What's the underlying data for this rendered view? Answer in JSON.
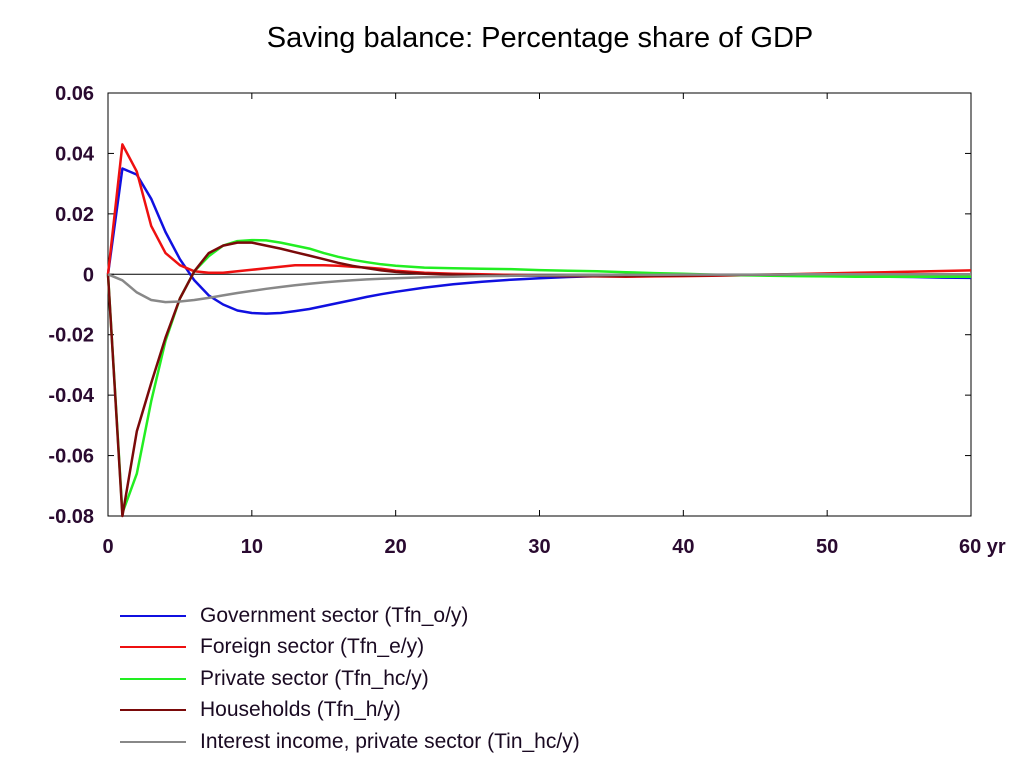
{
  "chart_data": {
    "type": "line",
    "title": "Saving balance: Percentage share of GDP",
    "xlabel": "",
    "ylabel": "",
    "xlim": [
      0,
      60
    ],
    "ylim": [
      -0.08,
      0.06
    ],
    "x_ticks": [
      {
        "value": 0,
        "label": "0"
      },
      {
        "value": 10,
        "label": "10"
      },
      {
        "value": 20,
        "label": "20"
      },
      {
        "value": 30,
        "label": "30"
      },
      {
        "value": 40,
        "label": "40"
      },
      {
        "value": 50,
        "label": "50"
      },
      {
        "value": 60,
        "label": "60 yr"
      }
    ],
    "y_ticks": [
      {
        "value": 0.06,
        "label": "0.06"
      },
      {
        "value": 0.04,
        "label": "0.04"
      },
      {
        "value": 0.02,
        "label": "0.02"
      },
      {
        "value": 0,
        "label": "0"
      },
      {
        "value": -0.02,
        "label": "-0.02"
      },
      {
        "value": -0.04,
        "label": "-0.04"
      },
      {
        "value": -0.06,
        "label": "-0.06"
      },
      {
        "value": -0.08,
        "label": "-0.08"
      }
    ],
    "grid": false,
    "zero_line": true,
    "legend_position": "bottom",
    "x": [
      0,
      1,
      2,
      3,
      4,
      5,
      6,
      7,
      8,
      9,
      10,
      11,
      12,
      13,
      14,
      15,
      16,
      17,
      18,
      19,
      20,
      22,
      24,
      26,
      28,
      30,
      32,
      34,
      36,
      38,
      40,
      42,
      44,
      46,
      48,
      50,
      52,
      54,
      56,
      58,
      60
    ],
    "series": [
      {
        "name": "Government sector (Tfn_o/y)",
        "color": "#1010e0",
        "values": [
          0,
          0.035,
          0.033,
          0.025,
          0.014,
          0.005,
          -0.002,
          -0.007,
          -0.01,
          -0.012,
          -0.0128,
          -0.013,
          -0.0128,
          -0.0122,
          -0.0115,
          -0.0105,
          -0.0095,
          -0.0085,
          -0.0075,
          -0.0066,
          -0.0058,
          -0.0044,
          -0.0033,
          -0.0025,
          -0.0018,
          -0.0013,
          -0.0009,
          -0.0006,
          -0.0004,
          -0.0003,
          -0.0002,
          -0.0002,
          -0.0002,
          -0.0003,
          -0.0004,
          -0.0005,
          -0.0006,
          -0.0008,
          -0.0009,
          -0.0011,
          -0.0012
        ]
      },
      {
        "name": "Foreign sector (Tfn_e/y)",
        "color": "#ee1010",
        "values": [
          0,
          0.043,
          0.034,
          0.016,
          0.007,
          0.003,
          0.001,
          0.0005,
          0.0005,
          0.001,
          0.0015,
          0.002,
          0.0025,
          0.003,
          0.003,
          0.003,
          0.0028,
          0.0025,
          0.0022,
          0.0018,
          0.0012,
          0.0005,
          0.0002,
          0,
          -0.0002,
          -0.0004,
          -0.0006,
          -0.0007,
          -0.0008,
          -0.0007,
          -0.0006,
          -0.0005,
          -0.0003,
          -0.0001,
          0.0001,
          0.0003,
          0.0005,
          0.0007,
          0.0009,
          0.0011,
          0.0013
        ]
      },
      {
        "name": "Private sector (Tfn_hc/y)",
        "color": "#22ee22",
        "values": [
          0,
          -0.079,
          -0.066,
          -0.042,
          -0.022,
          -0.008,
          0.001,
          0.006,
          0.0095,
          0.011,
          0.0113,
          0.0112,
          0.0105,
          0.0095,
          0.0085,
          0.007,
          0.0058,
          0.0048,
          0.004,
          0.0033,
          0.0028,
          0.0022,
          0.002,
          0.0018,
          0.0017,
          0.0014,
          0.0012,
          0.001,
          0.0007,
          0.0004,
          0.0002,
          -0.0001,
          -0.0003,
          -0.0005,
          -0.0006,
          -0.0007,
          -0.0008,
          -0.0008,
          -0.0008,
          -0.0008,
          -0.0008
        ]
      },
      {
        "name": "Households (Tfn_h/y)",
        "color": "#7a0a0a",
        "values": [
          0,
          -0.08,
          -0.052,
          -0.036,
          -0.021,
          -0.008,
          0.001,
          0.007,
          0.0095,
          0.0105,
          0.0105,
          0.0095,
          0.0085,
          0.0073,
          0.0062,
          0.005,
          0.0038,
          0.0028,
          0.002,
          0.0013,
          0.0008,
          0.0002,
          -0.0001,
          -0.0003,
          -0.0004,
          -0.0005,
          -0.0006,
          -0.0006,
          -0.0006,
          -0.0005,
          -0.0004,
          -0.0003,
          -0.0002,
          -0.0001,
          0,
          0,
          0,
          0,
          0,
          0,
          0
        ]
      },
      {
        "name": "Interest income, private sector (Tin_hc/y)",
        "color": "#888888",
        "values": [
          0,
          -0.002,
          -0.006,
          -0.0085,
          -0.0092,
          -0.009,
          -0.0085,
          -0.0078,
          -0.007,
          -0.0062,
          -0.0055,
          -0.0048,
          -0.0042,
          -0.0036,
          -0.0031,
          -0.0027,
          -0.0023,
          -0.002,
          -0.0017,
          -0.0015,
          -0.0013,
          -0.001,
          -0.0008,
          -0.0006,
          -0.0005,
          -0.0004,
          -0.0003,
          -0.0003,
          -0.0002,
          -0.0002,
          -0.0001,
          -0.0001,
          -0.0001,
          -0.0001,
          0,
          0,
          0,
          0,
          0,
          0,
          0
        ]
      }
    ]
  }
}
